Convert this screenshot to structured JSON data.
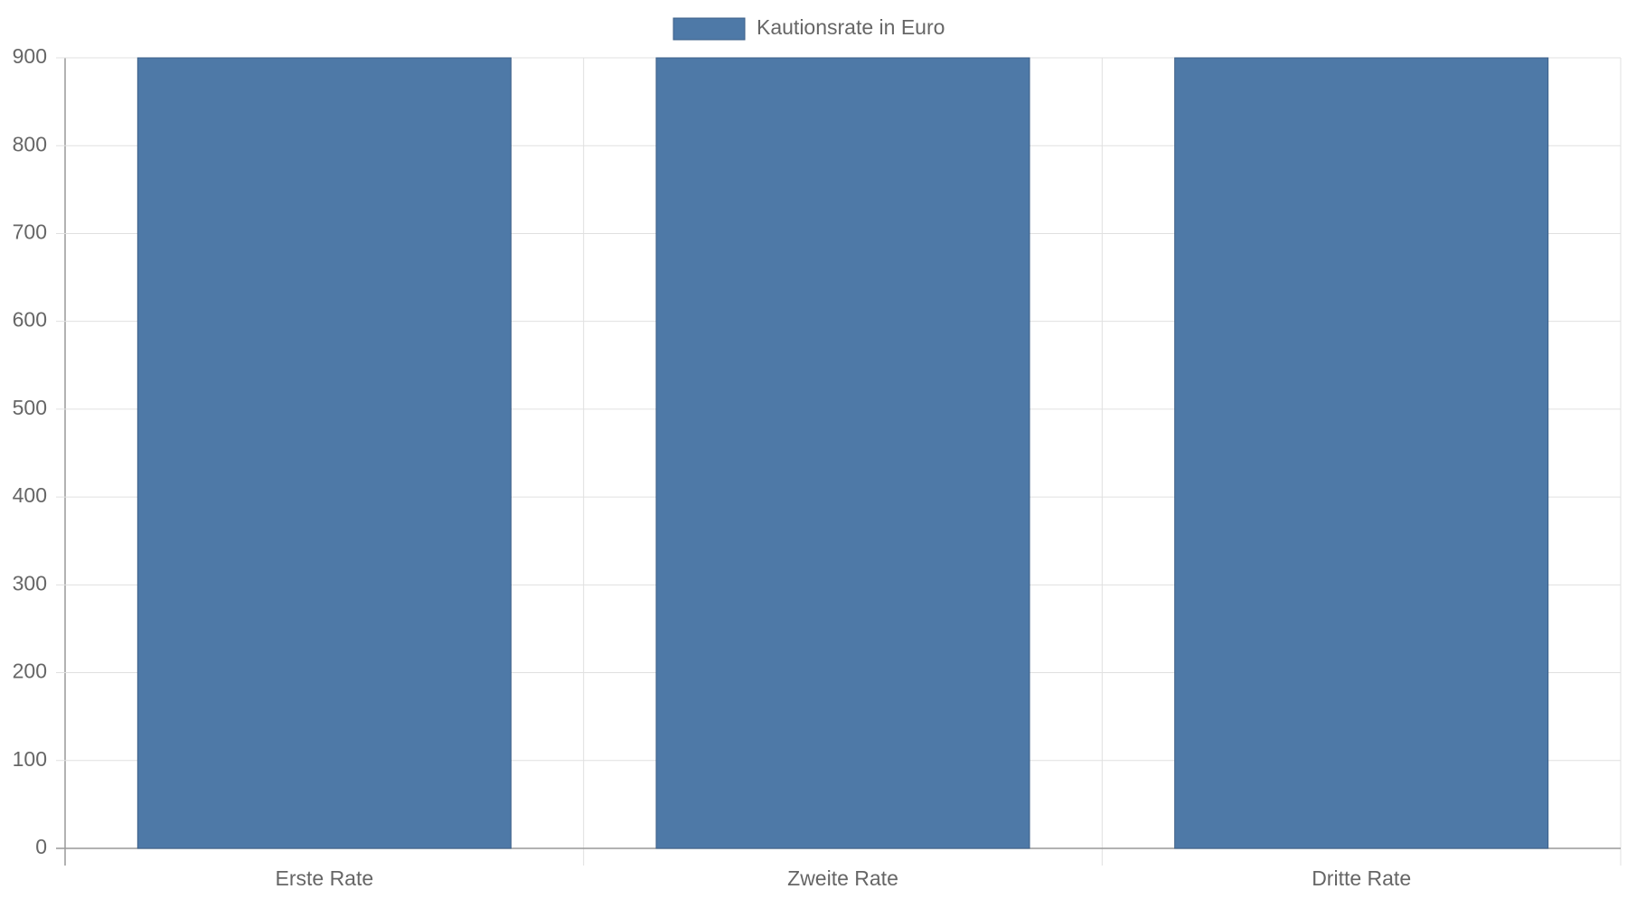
{
  "chart_data": {
    "type": "bar",
    "categories": [
      "Erste Rate",
      "Zweite Rate",
      "Dritte Rate"
    ],
    "series": [
      {
        "name": "Kautionsrate in Euro",
        "color": "#4e79a7",
        "values": [
          900,
          900,
          900
        ]
      }
    ],
    "ylim": [
      0,
      900
    ],
    "yticks": [
      0,
      100,
      200,
      300,
      400,
      500,
      600,
      700,
      800,
      900
    ],
    "grid": true,
    "legend": "top"
  }
}
